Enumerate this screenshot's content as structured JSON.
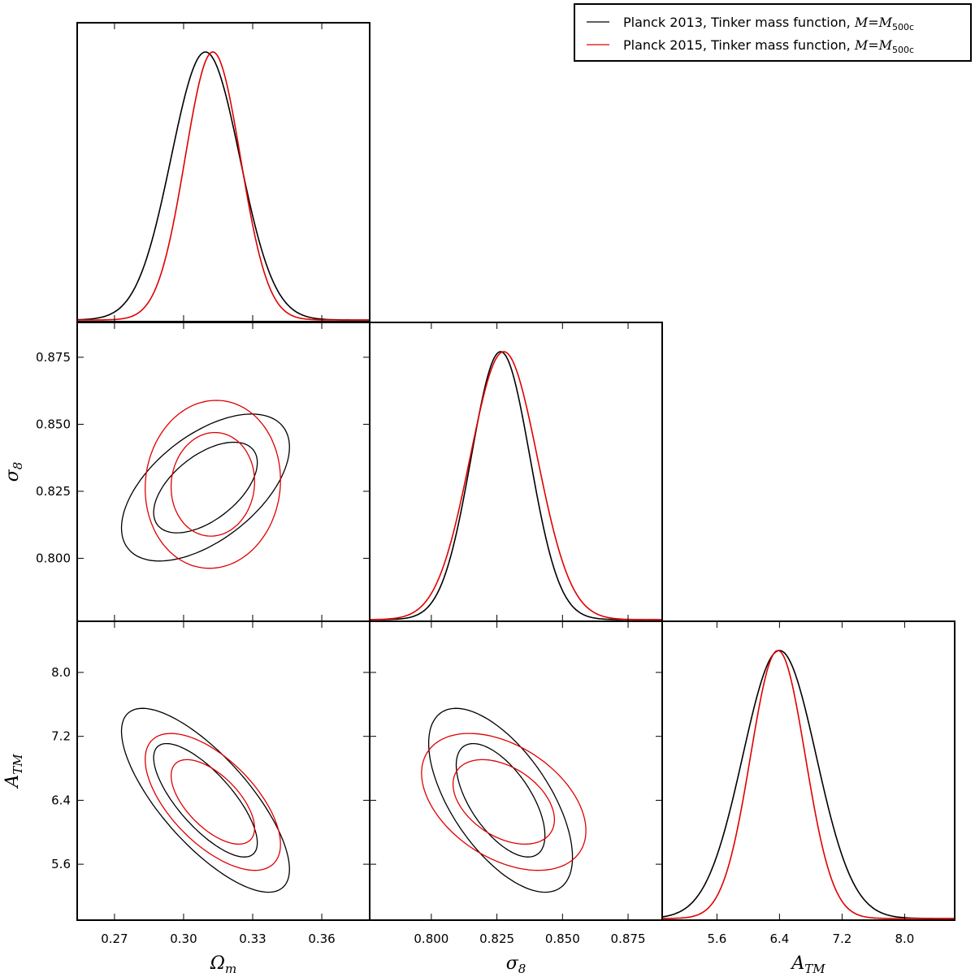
{
  "chart_data": {
    "type": "triangle-plot",
    "parameters": [
      {
        "name": "Ω_m",
        "label_main": "Ω",
        "label_sub": "m",
        "range": [
          0.2538,
          0.3808
        ],
        "ticks": [
          "0.27",
          "0.30",
          "0.33",
          "0.36"
        ],
        "tick_values": [
          0.27,
          0.3,
          0.33,
          0.36
        ]
      },
      {
        "name": "σ_8",
        "label_main": "σ",
        "label_sub": "8",
        "range": [
          0.7765,
          0.888
        ],
        "ticks": [
          "0.800",
          "0.825",
          "0.850",
          "0.875"
        ],
        "tick_values": [
          0.8,
          0.825,
          0.85,
          0.875
        ]
      },
      {
        "name": "A_TM",
        "label_main": "A",
        "label_sub": "TM",
        "range": [
          4.9,
          8.64
        ],
        "ticks": [
          "5.6",
          "6.4",
          "7.2",
          "8.0"
        ],
        "tick_values": [
          5.6,
          6.4,
          7.2,
          8.0
        ]
      }
    ],
    "contour_levels": [
      "68%",
      "95%"
    ],
    "series": [
      {
        "name": "Planck 2013, Tinker mass function, M=M500c",
        "legend_text": "Planck 2013, Tinker mass function, ",
        "legend_math": "M=M",
        "legend_sub": "500c",
        "color": "#000000",
        "mean": [
          0.3095,
          0.8264,
          6.4
        ],
        "std": [
          0.0149,
          0.0112,
          0.47
        ],
        "correlation": {
          "0-1": 0.55,
          "0-2": -0.75,
          "1-2": -0.62
        }
      },
      {
        "name": "Planck 2015, Tinker mass function, M=M500c",
        "legend_text": "Planck 2015, Tinker mass function, ",
        "legend_math": "M=M",
        "legend_sub": "500c",
        "color": "#e00000",
        "mean": [
          0.3127,
          0.8276,
          6.38
        ],
        "std": [
          0.012,
          0.0128,
          0.35
        ],
        "correlation": {
          "0-1": 0.05,
          "0-2": -0.62,
          "1-2": -0.42
        }
      }
    ],
    "legend_placement": "top-right",
    "grid": false
  }
}
